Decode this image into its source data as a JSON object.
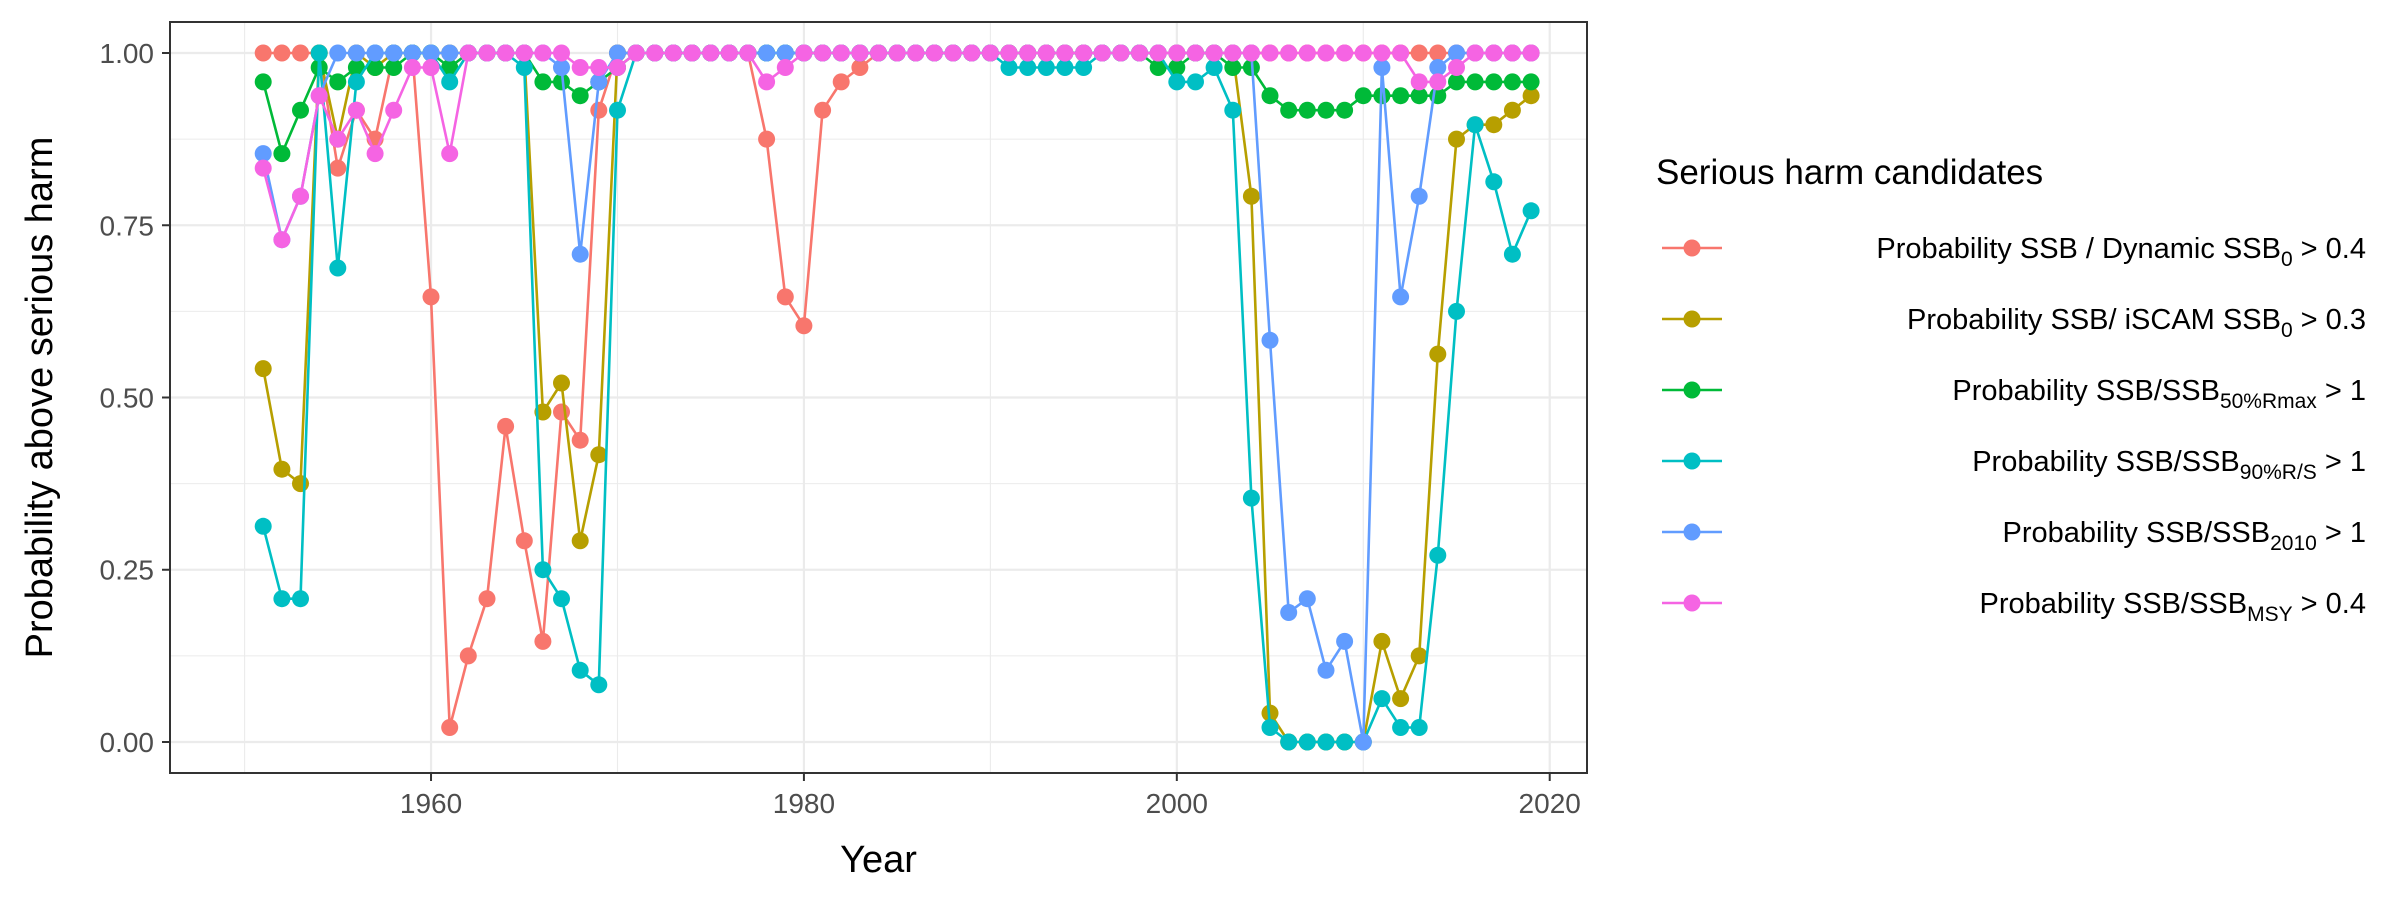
{
  "chart_data": {
    "type": "line",
    "title": "",
    "xlabel": "Year",
    "ylabel": "Probability above serious harm",
    "xlim": [
      1946,
      2022
    ],
    "ylim": [
      -0.045,
      1.045
    ],
    "x_ticks": [
      1960,
      1980,
      2000,
      2020
    ],
    "x_tick_labels": [
      "1960",
      "1980",
      "2000",
      "2020"
    ],
    "y_ticks": [
      0,
      0.25,
      0.5,
      0.75,
      1
    ],
    "y_tick_labels": [
      "0.00",
      "0.25",
      "0.50",
      "0.75",
      "1.00"
    ],
    "grid": true,
    "legend_position": "right",
    "legend_title": "Serious harm candidates",
    "x": [
      1951,
      1952,
      1953,
      1954,
      1955,
      1956,
      1957,
      1958,
      1959,
      1960,
      1961,
      1962,
      1963,
      1964,
      1965,
      1966,
      1967,
      1968,
      1969,
      1970,
      1971,
      1972,
      1973,
      1974,
      1975,
      1976,
      1977,
      1978,
      1979,
      1980,
      1981,
      1982,
      1983,
      1984,
      1985,
      1986,
      1987,
      1988,
      1989,
      1990,
      1991,
      1992,
      1993,
      1994,
      1995,
      1996,
      1997,
      1998,
      1999,
      2000,
      2001,
      2002,
      2003,
      2004,
      2005,
      2006,
      2007,
      2008,
      2009,
      2010,
      2011,
      2012,
      2013,
      2014,
      2015,
      2016,
      2017,
      2018,
      2019
    ],
    "series": [
      {
        "name": "Probability SSB / Dynamic SSB0 > 0.4",
        "label_base": "Probability SSB / Dynamic SSB",
        "label_sub": "0",
        "label_tail": " > 0.4",
        "color": "#F8766D",
        "values": [
          1,
          1,
          1,
          1,
          0.833,
          0.917,
          0.875,
          1,
          1,
          0.646,
          0.021,
          0.125,
          0.208,
          0.458,
          0.292,
          0.146,
          0.479,
          0.438,
          0.917,
          1,
          1,
          1,
          1,
          1,
          1,
          1,
          1,
          0.875,
          0.646,
          0.604,
          0.917,
          0.958,
          0.979,
          1,
          1,
          1,
          1,
          1,
          1,
          1,
          1,
          1,
          1,
          1,
          1,
          1,
          1,
          1,
          1,
          1,
          1,
          1,
          1,
          1,
          1,
          1,
          1,
          1,
          1,
          1,
          1,
          1,
          1,
          1,
          1,
          1,
          1,
          1,
          1
        ]
      },
      {
        "name": "Probability SSB/ iSCAM SSB0 > 0.3",
        "label_base": "Probability SSB/ iSCAM SSB",
        "label_sub": "0",
        "label_tail": " > 0.3",
        "color": "#B79F00",
        "values": [
          0.542,
          0.396,
          0.375,
          1,
          0.875,
          1,
          0.979,
          1,
          1,
          1,
          1,
          1,
          1,
          1,
          1,
          0.479,
          0.521,
          0.292,
          0.417,
          1,
          1,
          1,
          1,
          1,
          1,
          1,
          1,
          1,
          1,
          1,
          1,
          1,
          1,
          1,
          1,
          1,
          1,
          1,
          1,
          1,
          1,
          1,
          1,
          1,
          1,
          1,
          1,
          1,
          1,
          1,
          1,
          1,
          1,
          0.792,
          0.042,
          0,
          0,
          0,
          0,
          0,
          0.146,
          0.063,
          0.125,
          0.563,
          0.875,
          0.896,
          0.896,
          0.917,
          0.938
        ]
      },
      {
        "name": "Probability SSB/SSB50%Rmax > 1",
        "label_base": "Probability SSB/SSB",
        "label_sub": "50%Rmax",
        "label_tail": " > 1",
        "color": "#00BA38",
        "values": [
          0.958,
          0.854,
          0.917,
          0.979,
          0.958,
          0.979,
          0.979,
          0.979,
          1,
          1,
          0.979,
          1,
          1,
          1,
          1,
          0.958,
          0.958,
          0.938,
          0.958,
          0.979,
          1,
          1,
          1,
          1,
          1,
          1,
          1,
          1,
          1,
          1,
          1,
          1,
          1,
          1,
          1,
          1,
          1,
          1,
          1,
          1,
          1,
          1,
          1,
          1,
          1,
          1,
          1,
          1,
          0.979,
          0.979,
          1,
          1,
          0.979,
          0.979,
          0.938,
          0.917,
          0.917,
          0.917,
          0.917,
          0.938,
          0.938,
          0.938,
          0.938,
          0.938,
          0.958,
          0.958,
          0.958,
          0.958,
          0.958
        ]
      },
      {
        "name": "Probability SSB/SSB90%R/S > 1",
        "label_base": "Probability SSB/SSB",
        "label_sub": "90%R/S",
        "label_tail": " > 1",
        "color": "#00BFC4",
        "values": [
          0.313,
          0.208,
          0.208,
          1,
          0.688,
          0.958,
          1,
          1,
          1,
          1,
          0.958,
          1,
          1,
          1,
          0.979,
          0.25,
          0.208,
          0.104,
          0.083,
          0.917,
          1,
          1,
          1,
          1,
          1,
          1,
          1,
          1,
          1,
          1,
          1,
          1,
          1,
          1,
          1,
          1,
          1,
          1,
          1,
          1,
          0.979,
          0.979,
          0.979,
          0.979,
          0.979,
          1,
          1,
          1,
          1,
          0.958,
          0.958,
          0.979,
          0.917,
          0.354,
          0.021,
          0,
          0,
          0,
          0,
          0,
          0.063,
          0.021,
          0.021,
          0.271,
          0.625,
          0.896,
          0.813,
          0.708,
          0.771
        ]
      },
      {
        "name": "Probability SSB/SSB2010 > 1",
        "label_base": "Probability SSB/SSB",
        "label_sub": "2010",
        "label_tail": " > 1",
        "color": "#619CFF",
        "values": [
          0.854,
          0.729,
          0.792,
          0.938,
          1,
          1,
          1,
          1,
          1,
          1,
          1,
          1,
          1,
          1,
          1,
          1,
          0.979,
          0.708,
          0.958,
          1,
          1,
          1,
          1,
          1,
          1,
          1,
          1,
          1,
          1,
          1,
          1,
          1,
          1,
          1,
          1,
          1,
          1,
          1,
          1,
          1,
          1,
          1,
          1,
          1,
          1,
          1,
          1,
          1,
          1,
          1,
          1,
          1,
          1,
          1,
          0.583,
          0.188,
          0.208,
          0.104,
          0.146,
          0,
          0.979,
          0.646,
          0.792,
          0.979,
          1,
          1,
          1,
          1,
          1
        ]
      },
      {
        "name": "Probability SSB/SSBMSY > 0.4",
        "label_base": "Probability SSB/SSB",
        "label_sub": "MSY",
        "label_tail": " > 0.4",
        "color": "#F564E3",
        "values": [
          0.833,
          0.729,
          0.792,
          0.938,
          0.875,
          0.917,
          0.854,
          0.917,
          0.979,
          0.979,
          0.854,
          1,
          1,
          1,
          1,
          1,
          1,
          0.979,
          0.979,
          0.979,
          1,
          1,
          1,
          1,
          1,
          1,
          1,
          0.958,
          0.979,
          1,
          1,
          1,
          1,
          1,
          1,
          1,
          1,
          1,
          1,
          1,
          1,
          1,
          1,
          1,
          1,
          1,
          1,
          1,
          1,
          1,
          1,
          1,
          1,
          1,
          1,
          1,
          1,
          1,
          1,
          1,
          1,
          1,
          0.958,
          0.958,
          0.979,
          1,
          1,
          1,
          1
        ]
      }
    ]
  }
}
